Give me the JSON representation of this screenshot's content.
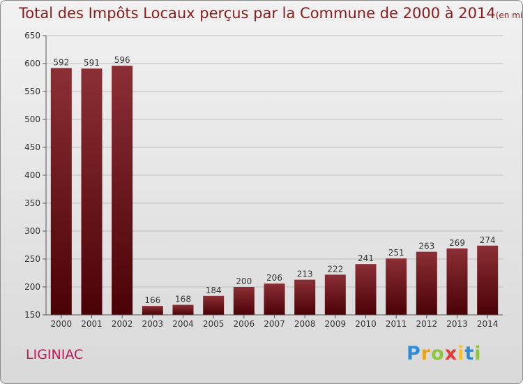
{
  "chart_data": {
    "type": "bar",
    "title": "Total des Impôts Locaux perçus par la Commune de 2000 à 2014",
    "unit_label": "(en milliers d'€)",
    "categories": [
      "2000",
      "2001",
      "2002",
      "2003",
      "2004",
      "2005",
      "2006",
      "2007",
      "2008",
      "2009",
      "2010",
      "2011",
      "2012",
      "2013",
      "2014"
    ],
    "values": [
      592,
      591,
      596,
      166,
      168,
      184,
      200,
      206,
      213,
      222,
      241,
      251,
      263,
      269,
      274
    ],
    "ylim": [
      150,
      650
    ],
    "yticks": [
      150,
      200,
      250,
      300,
      350,
      400,
      450,
      500,
      550,
      600,
      650
    ],
    "xlabel": "",
    "ylabel": "",
    "grid": true,
    "bar_color_top": "#8b2f35",
    "bar_color_bottom": "#4a0206"
  },
  "commune_name": "LIGINIAC",
  "logo_text": "Proxiti"
}
